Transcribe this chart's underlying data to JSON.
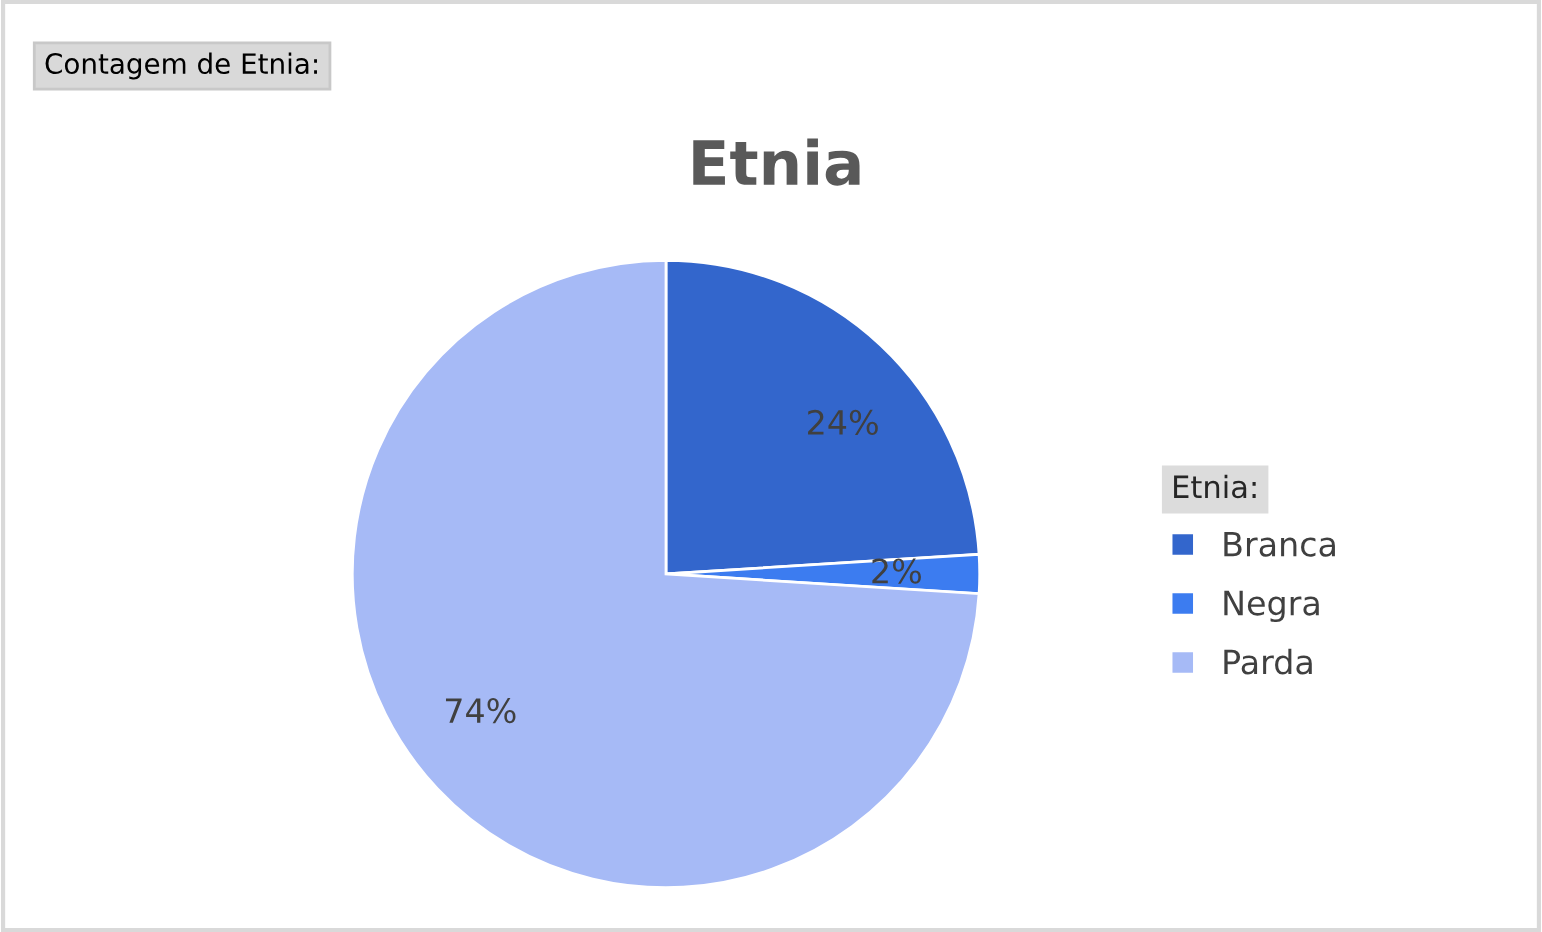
{
  "chart_data": {
    "type": "pie",
    "title": "Etnia",
    "legend_title": "Etnia:",
    "annotations": [
      "Contagem de Etnia:"
    ],
    "categories": [
      "Branca",
      "Negra",
      "Parda"
    ],
    "values": [
      24,
      2,
      74
    ],
    "colors": [
      "#3366cc",
      "#3c7cf0",
      "#a6baf6"
    ],
    "value_labels": [
      "24%",
      "2%",
      "74%"
    ],
    "legend": "right"
  }
}
